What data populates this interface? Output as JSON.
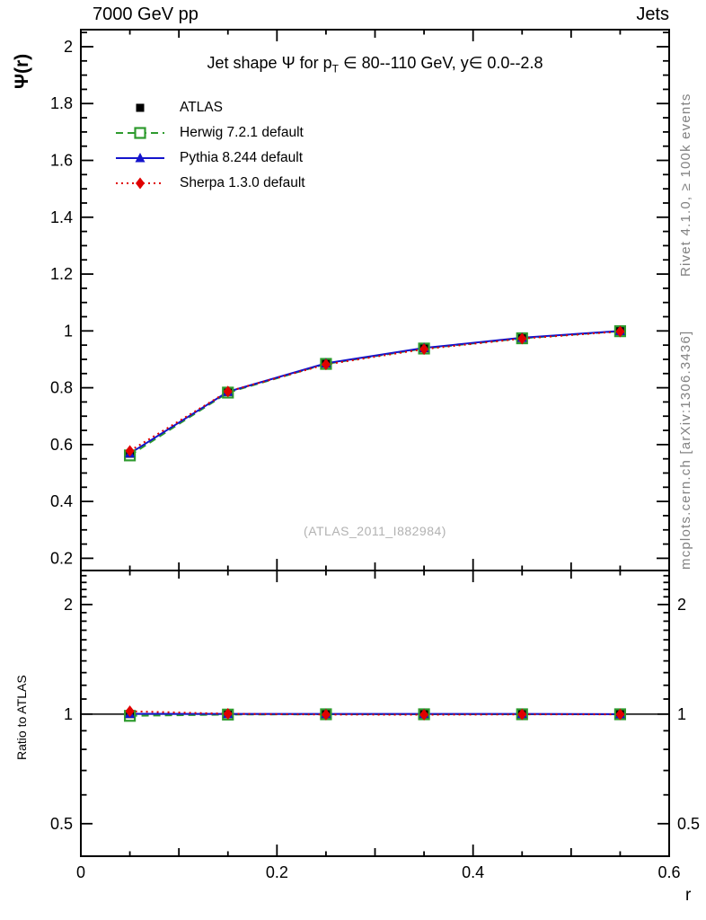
{
  "header": {
    "left": "7000 GeV pp",
    "right": "Jets"
  },
  "watermark": "(ATLAS_2011_I882984)",
  "side_captions": {
    "rivet": "Rivet 4.1.0, ≥ 100k events",
    "mcplots": "mcplots.cern.ch [arXiv:1306.3436]"
  },
  "colors": {
    "atlas": "#000000",
    "herwig": "#2e9b2e",
    "pythia": "#1414cc",
    "sherpa": "#e00000",
    "caption_gray": "#828282",
    "watermark_gray": "#b2b2b2"
  },
  "chart_data": {
    "type": "line",
    "title": "Jet shape Ψ for p_T ∈ 80--110 GeV, y∈ 0.0--2.8",
    "title_parts": {
      "pre": "Jet shape Ψ for p",
      "sub": "T",
      "post": " ∈ 80--110 GeV, y∈ 0.0--2.8"
    },
    "xlabel": "r",
    "ylabel": "Ψ(r)",
    "ratio_ylabel": "Ratio to ATLAS",
    "xlim": [
      0,
      0.6
    ],
    "main_ylim": [
      0.157,
      2.06
    ],
    "main_yscale": "linear",
    "ratio_ylim": [
      0.407,
      2.48
    ],
    "ratio_yscale": "log",
    "grid": false,
    "legend_position": "top-left-inside",
    "x": [
      0.05,
      0.15,
      0.25,
      0.35,
      0.45,
      0.55
    ],
    "xticks": {
      "major": [
        0,
        0.2,
        0.4,
        0.6
      ],
      "labels": [
        "0",
        "0.2",
        "0.4",
        "0.6"
      ],
      "medium": [
        0.1,
        0.3,
        0.5
      ],
      "minor": [
        0.05,
        0.15,
        0.25,
        0.35,
        0.45,
        0.55
      ]
    },
    "yticks_main": {
      "major": [
        0.2,
        0.4,
        0.6,
        0.8,
        1,
        1.2,
        1.4,
        1.6,
        1.8,
        2
      ],
      "labels": [
        "0.2",
        "0.4",
        "0.6",
        "0.8",
        "1",
        "1.2",
        "1.4",
        "1.6",
        "1.8",
        "2"
      ],
      "minor_step": 0.05
    },
    "yticks_ratio": {
      "major": [
        0.5,
        1,
        2
      ],
      "labels": [
        "0.5",
        "1",
        "2"
      ],
      "minor_step": 0.1
    },
    "ratio_reference": 1,
    "series": [
      {
        "label": "ATLAS",
        "color": "#000000",
        "line": "none",
        "marker": "square-filled",
        "values": [
          0.568,
          0.785,
          0.885,
          0.939,
          0.975,
          1.0
        ],
        "yerr": [
          0.012,
          0.006,
          0.005,
          0.004,
          0.003,
          0.002
        ],
        "ratio": [
          1,
          1,
          1,
          1,
          1,
          1
        ]
      },
      {
        "label": "Herwig 7.2.1 default",
        "color": "#2e9b2e",
        "line": "dashed",
        "marker": "square-open",
        "values": [
          0.562,
          0.783,
          0.884,
          0.938,
          0.974,
          0.999
        ],
        "yerr": [
          0.004,
          0.003,
          0.002,
          0.002,
          0.002,
          0.002
        ],
        "ratio": [
          0.989,
          0.997,
          0.999,
          0.999,
          0.999,
          0.999
        ]
      },
      {
        "label": "Pythia 8.244 default",
        "color": "#1414cc",
        "line": "solid",
        "marker": "triangle-filled",
        "values": [
          0.569,
          0.786,
          0.886,
          0.94,
          0.976,
          1.0
        ],
        "yerr": [
          0.004,
          0.003,
          0.002,
          0.002,
          0.002,
          0.002
        ],
        "ratio": [
          1.002,
          1.001,
          1.001,
          1.001,
          1.001,
          1.0
        ]
      },
      {
        "label": "Sherpa 1.3.0 default",
        "color": "#e00000",
        "line": "dotted",
        "marker": "diamond-filled",
        "values": [
          0.578,
          0.787,
          0.882,
          0.936,
          0.973,
          0.998
        ],
        "yerr": [
          0.013,
          0.005,
          0.004,
          0.003,
          0.003,
          0.002
        ],
        "ratio": [
          1.018,
          1.002,
          0.997,
          0.996,
          0.998,
          0.998
        ]
      }
    ]
  }
}
